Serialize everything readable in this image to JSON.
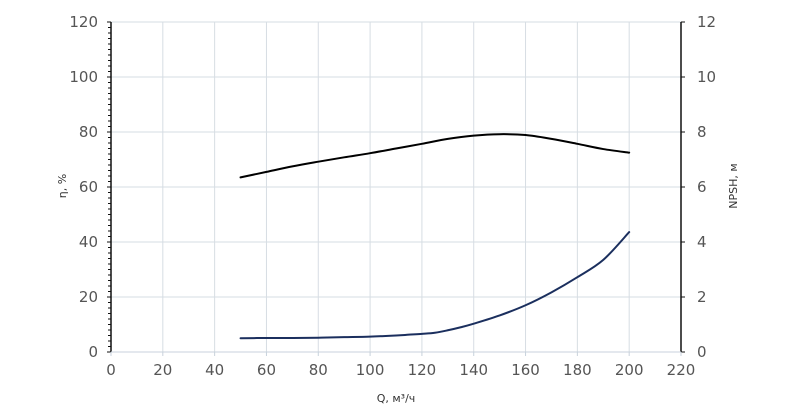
{
  "chart_data": {
    "type": "line",
    "title": "",
    "xlabel": "Q, м³/ч",
    "ylabel_left": "η, %",
    "ylabel_right": "NPSH, м",
    "xlim": [
      0,
      220
    ],
    "ylim_left": [
      0,
      120
    ],
    "ylim_right": [
      0,
      12
    ],
    "x_ticks": [
      "0",
      "20",
      "40",
      "60",
      "80",
      "100",
      "120",
      "140",
      "160",
      "180",
      "200",
      "220"
    ],
    "y_left_ticks": [
      "0",
      "20",
      "40",
      "60",
      "80",
      "100",
      "120"
    ],
    "y_right_ticks": [
      "0",
      "2",
      "4",
      "6",
      "8",
      "10",
      "12"
    ],
    "grid": true,
    "legend": "none",
    "colors": {
      "efficiency": "#000000",
      "npsh": "#1b2f5e",
      "grid": "#d6dde3"
    },
    "series": [
      {
        "axis": "left",
        "x": [
          50,
          60,
          70,
          80,
          90,
          100,
          110,
          120,
          130,
          140,
          150,
          160,
          170,
          180,
          190,
          200
        ],
        "values": [
          63.5,
          65.5,
          67.5,
          69.2,
          70.8,
          72.3,
          74,
          75.7,
          77.5,
          78.7,
          79.2,
          78.9,
          77.5,
          75.7,
          73.8,
          72.5
        ]
      },
      {
        "axis": "right",
        "x": [
          50,
          60,
          70,
          80,
          90,
          100,
          110,
          115,
          120,
          125,
          130,
          135,
          140,
          150,
          160,
          170,
          180,
          190,
          200
        ],
        "values": [
          0.5,
          0.51,
          0.51,
          0.52,
          0.54,
          0.56,
          0.6,
          0.63,
          0.66,
          0.7,
          0.79,
          0.9,
          1.03,
          1.33,
          1.7,
          2.17,
          2.72,
          3.35,
          4.36
        ]
      }
    ]
  }
}
